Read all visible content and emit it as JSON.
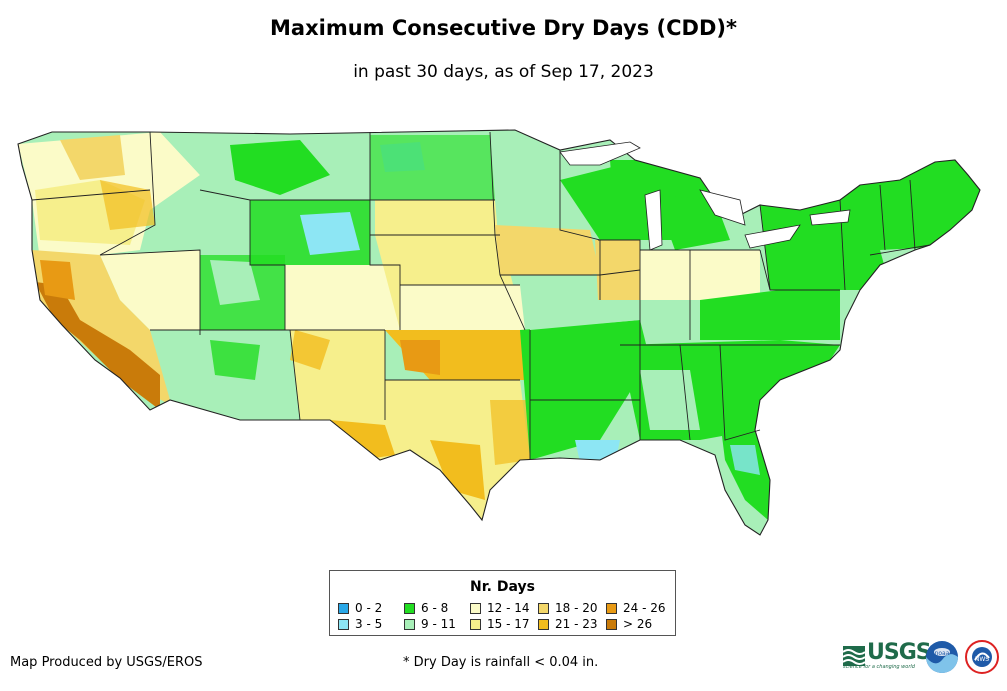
{
  "title": "Maximum Consecutive Dry Days (CDD)*",
  "subtitle": "in past 30 days, as of Sep 17, 2023",
  "legend": {
    "title": "Nr. Days",
    "items": [
      {
        "label": "0 - 2",
        "color": "#2aa8e8"
      },
      {
        "label": "3 - 5",
        "color": "#8de6f4"
      },
      {
        "label": "6 - 8",
        "color": "#22dd22"
      },
      {
        "label": "9 - 11",
        "color": "#a8efb8"
      },
      {
        "label": "12 - 14",
        "color": "#fbfbc8"
      },
      {
        "label": "15 - 17",
        "color": "#f6ef8c"
      },
      {
        "label": "18 - 20",
        "color": "#f3d76a"
      },
      {
        "label": "21 - 23",
        "color": "#f2bd1e"
      },
      {
        "label": "24 - 26",
        "color": "#e89a14"
      },
      {
        "label": "> 26",
        "color": "#c97b0a"
      }
    ]
  },
  "credit": "Map Produced by USGS/EROS",
  "footnote": "* Dry Day is rainfall < 0.04 in.",
  "logos": {
    "usgs": "USGS",
    "usgs_tagline": "science for a changing world",
    "noaa": "noaa",
    "nws": "NWS"
  }
}
